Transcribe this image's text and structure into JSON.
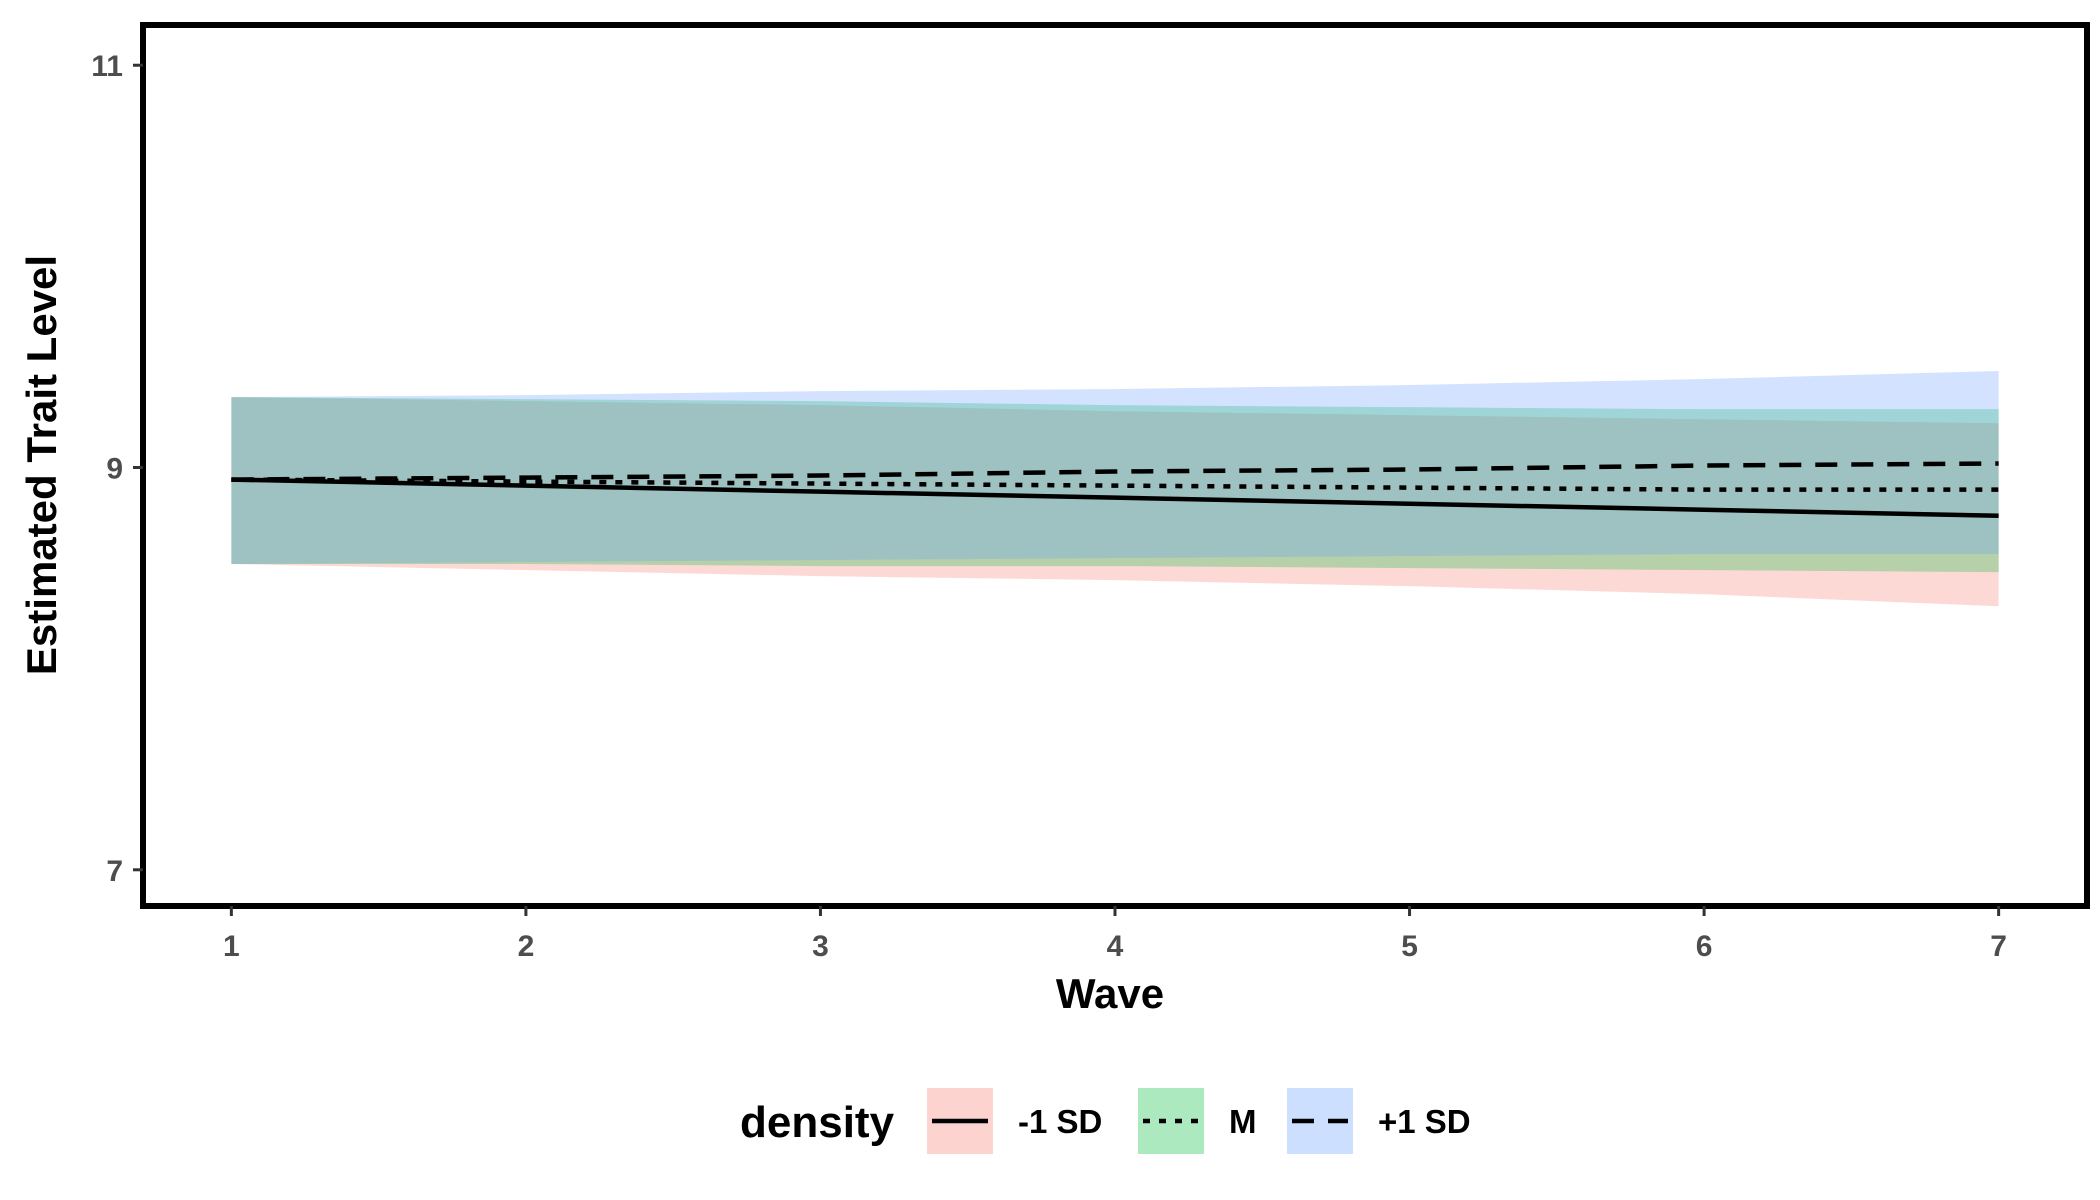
{
  "chart_data": {
    "type": "line",
    "title": "",
    "xlabel": "Wave",
    "ylabel": "Estimated Trait Level",
    "x": [
      1,
      2,
      3,
      4,
      5,
      6,
      7
    ],
    "xlim": [
      0.7,
      7.3
    ],
    "ylim": [
      6.82,
      11.2
    ],
    "xticks": [
      "1",
      "2",
      "3",
      "4",
      "5",
      "6",
      "7"
    ],
    "yticks": [
      7,
      9,
      11
    ],
    "grid": false,
    "legend_title": "density",
    "legend_position": "bottom",
    "series": [
      {
        "name": "-1 SD",
        "linestyle": "solid",
        "fill_color": "#F8766D",
        "y": [
          8.94,
          8.91,
          8.88,
          8.85,
          8.82,
          8.79,
          8.76
        ],
        "lower": [
          8.52,
          8.49,
          8.46,
          8.44,
          8.41,
          8.37,
          8.31
        ],
        "upper": [
          9.35,
          9.33,
          9.31,
          9.28,
          9.26,
          9.24,
          9.22
        ]
      },
      {
        "name": "M",
        "linestyle": "dotted",
        "fill_color": "#00BA38",
        "y": [
          8.94,
          8.93,
          8.92,
          8.91,
          8.9,
          8.89,
          8.89
        ],
        "lower": [
          8.52,
          8.52,
          8.51,
          8.51,
          8.5,
          8.49,
          8.48
        ],
        "upper": [
          9.35,
          9.34,
          9.33,
          9.31,
          9.3,
          9.29,
          9.29
        ]
      },
      {
        "name": "+1 SD",
        "linestyle": "dashed",
        "fill_color": "#619CFF",
        "y": [
          8.94,
          8.95,
          8.96,
          8.98,
          8.99,
          9.01,
          9.02
        ],
        "lower": [
          8.52,
          8.53,
          8.54,
          8.55,
          8.56,
          8.57,
          8.57
        ],
        "upper": [
          9.35,
          9.36,
          9.38,
          9.39,
          9.41,
          9.44,
          9.48
        ]
      }
    ]
  }
}
